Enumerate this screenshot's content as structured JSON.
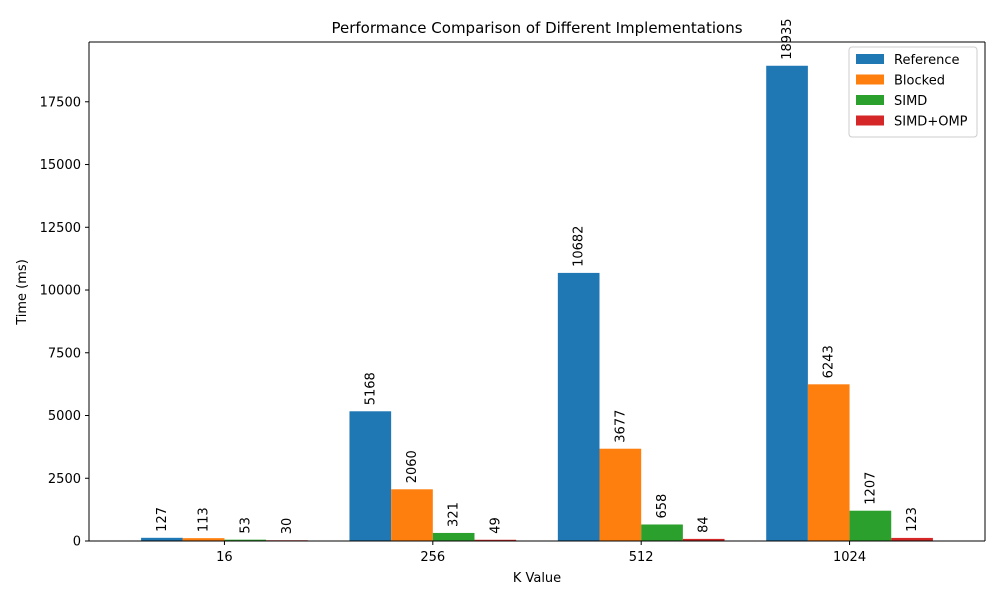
{
  "chart_data": {
    "type": "bar",
    "title": "Performance Comparison of Different Implementations",
    "xlabel": "K Value",
    "ylabel": "Time (ms)",
    "categories": [
      "16",
      "256",
      "512",
      "1024"
    ],
    "series": [
      {
        "name": "Reference",
        "color": "#1f77b4",
        "values": [
          127,
          5168,
          10682,
          18935
        ]
      },
      {
        "name": "Blocked",
        "color": "#ff7f0e",
        "values": [
          113,
          2060,
          3677,
          6243
        ]
      },
      {
        "name": "SIMD",
        "color": "#2ca02c",
        "values": [
          53,
          321,
          658,
          1207
        ]
      },
      {
        "name": "SIMD+OMP",
        "color": "#d62728",
        "values": [
          30,
          49,
          84,
          123
        ]
      }
    ],
    "ylim": [
      0,
      19881.75
    ],
    "yticks": [
      "0",
      "2500",
      "5000",
      "7500",
      "10000",
      "12500",
      "15000",
      "17500"
    ],
    "grid": false,
    "legend_position": "top-right"
  }
}
